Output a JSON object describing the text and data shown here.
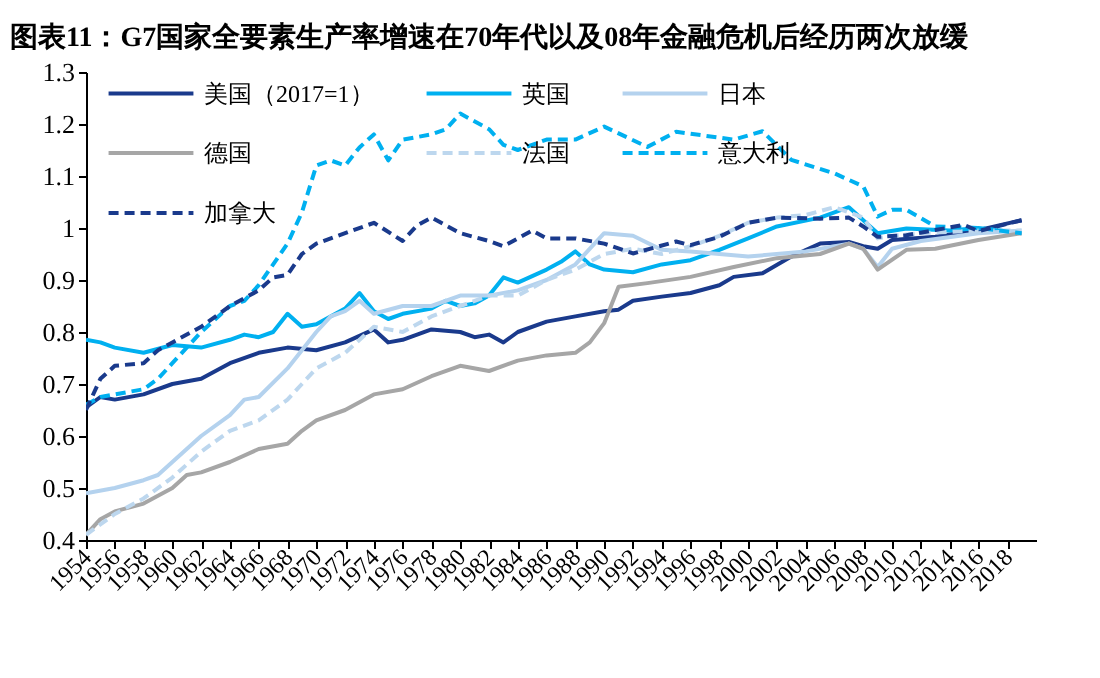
{
  "chart_data": {
    "type": "line",
    "title": "图表11：G7国家全要素生产率增速在70年代以及08年金融危机后经历两次放缓",
    "xlim": [
      1954,
      2020
    ],
    "xticks": [
      1954,
      1956,
      1958,
      1960,
      1962,
      1964,
      1966,
      1968,
      1970,
      1972,
      1974,
      1976,
      1978,
      1980,
      1982,
      1984,
      1986,
      1988,
      1990,
      1992,
      1994,
      1996,
      1998,
      2000,
      2002,
      2004,
      2006,
      2008,
      2010,
      2012,
      2014,
      2016,
      2018
    ],
    "ylim": [
      0.4,
      1.3
    ],
    "yticks": [
      0.4,
      0.5,
      0.6,
      0.7,
      0.8,
      0.9,
      1,
      1.1,
      1.2,
      1.3
    ],
    "grid": false,
    "legend": "top left",
    "series": [
      {
        "name": "美国（2017=1）",
        "color": "#1a3a8c",
        "line_style": "solid",
        "x": [
          1954,
          1955,
          1956,
          1958,
          1960,
          1962,
          1964,
          1966,
          1968,
          1970,
          1972,
          1974,
          1975,
          1976,
          1978,
          1980,
          1981,
          1982,
          1983,
          1984,
          1986,
          1988,
          1990,
          1991,
          1992,
          1994,
          1996,
          1998,
          1999,
          2001,
          2003,
          2005,
          2007,
          2008,
          2009,
          2010,
          2013,
          2016,
          2019
        ],
        "values": [
          0.655,
          0.675,
          0.67,
          0.68,
          0.7,
          0.71,
          0.74,
          0.76,
          0.77,
          0.765,
          0.78,
          0.805,
          0.78,
          0.785,
          0.805,
          0.8,
          0.79,
          0.795,
          0.78,
          0.8,
          0.82,
          0.83,
          0.84,
          0.843,
          0.86,
          0.868,
          0.875,
          0.89,
          0.906,
          0.913,
          0.945,
          0.97,
          0.973,
          0.965,
          0.96,
          0.977,
          0.983,
          0.996,
          1.015
        ]
      },
      {
        "name": "英国",
        "color": "#00b0f0",
        "line_style": "solid",
        "x": [
          1954,
          1955,
          1956,
          1958,
          1960,
          1962,
          1964,
          1965,
          1966,
          1967,
          1968,
          1969,
          1970,
          1972,
          1973,
          1974,
          1975,
          1976,
          1978,
          1979,
          1980,
          1981,
          1982,
          1983,
          1984,
          1986,
          1987,
          1988,
          1989,
          1990,
          1992,
          1994,
          1996,
          1998,
          2000,
          2002,
          2005,
          2007,
          2009,
          2011,
          2014,
          2016,
          2019
        ],
        "values": [
          0.785,
          0.78,
          0.77,
          0.76,
          0.775,
          0.77,
          0.785,
          0.795,
          0.79,
          0.8,
          0.835,
          0.81,
          0.815,
          0.845,
          0.875,
          0.84,
          0.825,
          0.835,
          0.845,
          0.86,
          0.85,
          0.855,
          0.87,
          0.905,
          0.895,
          0.92,
          0.935,
          0.955,
          0.93,
          0.92,
          0.915,
          0.93,
          0.938,
          0.958,
          0.98,
          1.003,
          1.02,
          1.04,
          0.99,
          0.999,
          0.995,
          1.0,
          0.99
        ]
      },
      {
        "name": "日本",
        "color": "#b4d2ee",
        "line_style": "solid",
        "x": [
          1954,
          1956,
          1958,
          1959,
          1960,
          1962,
          1964,
          1965,
          1966,
          1968,
          1970,
          1971,
          1972,
          1973,
          1974,
          1976,
          1978,
          1980,
          1982,
          1984,
          1986,
          1988,
          1990,
          1992,
          1994,
          1996,
          1998,
          2000,
          2004,
          2007,
          2008,
          2009,
          2010,
          2012,
          2016,
          2019
        ],
        "values": [
          0.49,
          0.5,
          0.515,
          0.525,
          0.55,
          0.6,
          0.64,
          0.67,
          0.675,
          0.73,
          0.8,
          0.83,
          0.84,
          0.86,
          0.835,
          0.85,
          0.85,
          0.87,
          0.87,
          0.88,
          0.9,
          0.93,
          0.99,
          0.985,
          0.958,
          0.955,
          0.95,
          0.945,
          0.955,
          0.97,
          0.96,
          0.925,
          0.96,
          0.975,
          0.99,
          0.995
        ]
      },
      {
        "name": "德国",
        "color": "#a6a6a6",
        "line_style": "solid",
        "x": [
          1954,
          1955,
          1956,
          1958,
          1960,
          1961,
          1962,
          1964,
          1966,
          1968,
          1969,
          1970,
          1972,
          1974,
          1976,
          1978,
          1980,
          1982,
          1984,
          1986,
          1988,
          1989,
          1990,
          1991,
          1993,
          1996,
          1999,
          2002,
          2005,
          2007,
          2008,
          2009,
          2011,
          2013,
          2016,
          2019
        ],
        "values": [
          0.41,
          0.44,
          0.455,
          0.47,
          0.5,
          0.525,
          0.53,
          0.55,
          0.575,
          0.585,
          0.61,
          0.63,
          0.65,
          0.68,
          0.69,
          0.715,
          0.735,
          0.725,
          0.745,
          0.755,
          0.76,
          0.78,
          0.817,
          0.887,
          0.894,
          0.906,
          0.925,
          0.942,
          0.95,
          0.97,
          0.96,
          0.92,
          0.958,
          0.96,
          0.977,
          0.99
        ]
      },
      {
        "name": "法国",
        "color": "#bdd7ee",
        "line_style": "dashed",
        "x": [
          1954,
          1956,
          1958,
          1960,
          1962,
          1964,
          1966,
          1968,
          1969,
          1970,
          1972,
          1974,
          1976,
          1978,
          1980,
          1982,
          1984,
          1986,
          1988,
          1990,
          1992,
          1994,
          1996,
          1998,
          2000,
          2002,
          2004,
          2006,
          2008,
          2009,
          2010,
          2012,
          2016,
          2019
        ],
        "values": [
          0.41,
          0.45,
          0.48,
          0.52,
          0.57,
          0.61,
          0.63,
          0.67,
          0.7,
          0.73,
          0.76,
          0.81,
          0.8,
          0.83,
          0.85,
          0.87,
          0.87,
          0.9,
          0.92,
          0.95,
          0.96,
          0.95,
          0.965,
          0.985,
          1.01,
          1.02,
          1.025,
          1.04,
          1.02,
          0.98,
          0.985,
          0.99,
          0.995,
          0.995
        ]
      },
      {
        "name": "意大利",
        "color": "#00b0f0",
        "line_style": "dashed",
        "x": [
          1954,
          1955,
          1956,
          1958,
          1959,
          1960,
          1962,
          1964,
          1965,
          1966,
          1968,
          1969,
          1970,
          1971,
          1972,
          1973,
          1974,
          1975,
          1976,
          1978,
          1979,
          1980,
          1982,
          1983,
          1984,
          1986,
          1988,
          1990,
          1993,
          1995,
          1999,
          2001,
          2003,
          2006,
          2008,
          2009,
          2010,
          2011,
          2013,
          2016,
          2019
        ],
        "values": [
          0.66,
          0.675,
          0.68,
          0.69,
          0.71,
          0.74,
          0.8,
          0.85,
          0.86,
          0.89,
          0.97,
          1.03,
          1.12,
          1.13,
          1.12,
          1.155,
          1.18,
          1.13,
          1.17,
          1.18,
          1.19,
          1.22,
          1.19,
          1.16,
          1.15,
          1.17,
          1.17,
          1.195,
          1.156,
          1.185,
          1.17,
          1.186,
          1.131,
          1.105,
          1.08,
          1.022,
          1.035,
          1.035,
          1.003,
          1.0,
          0.99
        ]
      },
      {
        "name": "加拿大",
        "color": "#1a3a8c",
        "line_style": "dashed",
        "x": [
          1954,
          1955,
          1956,
          1958,
          1959,
          1960,
          1962,
          1964,
          1966,
          1967,
          1968,
          1969,
          1970,
          1972,
          1974,
          1976,
          1977,
          1978,
          1980,
          1982,
          1983,
          1985,
          1986,
          1988,
          1990,
          1992,
          1995,
          1996,
          1998,
          2000,
          2002,
          2005,
          2007,
          2008,
          2009,
          2011,
          2013,
          2015,
          2016,
          2019
        ],
        "values": [
          0.65,
          0.71,
          0.735,
          0.74,
          0.765,
          0.78,
          0.81,
          0.85,
          0.88,
          0.905,
          0.91,
          0.95,
          0.97,
          0.99,
          1.01,
          0.975,
          1.005,
          1.02,
          0.99,
          0.975,
          0.965,
          0.995,
          0.98,
          0.98,
          0.97,
          0.951,
          0.974,
          0.967,
          0.983,
          1.01,
          1.02,
          1.018,
          1.02,
          1.003,
          0.983,
          0.986,
          0.996,
          1.006,
          0.994,
          1.015
        ]
      }
    ]
  }
}
